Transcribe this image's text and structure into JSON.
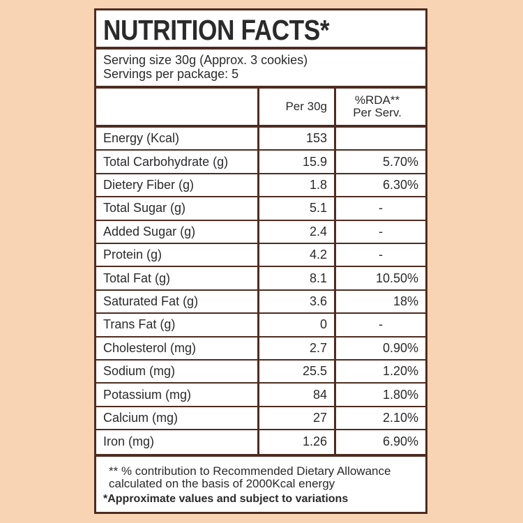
{
  "title": "NUTRITION FACTS*",
  "serving": {
    "size": "Serving size 30g (Approx. 3 cookies)",
    "per_package": "Servings per package: 5"
  },
  "header": {
    "col2": "Per 30g",
    "col3_line1": "%RDA**",
    "col3_line2": "Per Serv."
  },
  "rows": [
    {
      "name": "Energy (Kcal)",
      "per": "153",
      "rda": ""
    },
    {
      "name": "Total Carbohydrate (g)",
      "per": "15.9",
      "rda": "5.70%"
    },
    {
      "name": "Dietery Fiber (g)",
      "per": "1.8",
      "rda": "6.30%"
    },
    {
      "name": "Total Sugar (g)",
      "per": "5.1",
      "rda": "-"
    },
    {
      "name": "Added Sugar (g)",
      "per": "2.4",
      "rda": "-"
    },
    {
      "name": "Protein (g)",
      "per": "4.2",
      "rda": "-"
    },
    {
      "name": "Total Fat (g)",
      "per": "8.1",
      "rda": "10.50%"
    },
    {
      "name": "Saturated Fat (g)",
      "per": "3.6",
      "rda": "18%"
    },
    {
      "name": "Trans Fat (g)",
      "per": "0",
      "rda": "-"
    },
    {
      "name": "Cholesterol (mg)",
      "per": "2.7",
      "rda": "0.90%"
    },
    {
      "name": "Sodium (mg)",
      "per": "25.5",
      "rda": "1.20%"
    },
    {
      "name": "Potassium (mg)",
      "per": "84",
      "rda": "1.80%"
    },
    {
      "name": "Calcium (mg)",
      "per": "27",
      "rda": "2.10%"
    },
    {
      "name": "Iron (mg)",
      "per": "1.26",
      "rda": "6.90%"
    }
  ],
  "footer": {
    "line1": "** % contribution to Recommended Dietary Allowance",
    "line2": "calculated on the basis of 2000Kcal energy",
    "line3": "*Approximate values and subject to variations"
  },
  "colors": {
    "background": "#f8d4b4",
    "border": "#4e2c20"
  }
}
